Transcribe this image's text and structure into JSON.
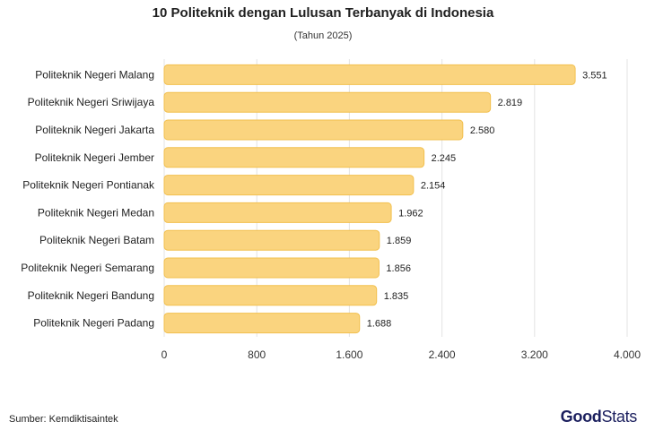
{
  "header": {
    "title": "10 Politeknik dengan Lulusan Terbanyak di Indonesia",
    "subtitle": "(Tahun 2025)"
  },
  "footer": {
    "source": "Sumber: Kemdiktisaintek",
    "brand_good": "Good",
    "brand_stats": "Stats"
  },
  "colors": {
    "bar_fill": "#fad47f",
    "bar_stroke": "#f2c04f",
    "grid": "#e3e3e3",
    "brand": "#1b1f5e"
  },
  "chart_data": {
    "type": "bar",
    "orientation": "horizontal",
    "title": "10 Politeknik dengan Lulusan Terbanyak di Indonesia",
    "subtitle": "(Tahun 2025)",
    "categories": [
      "Politeknik Negeri Malang",
      "Politeknik Negeri Sriwijaya",
      "Politeknik Negeri Jakarta",
      "Politeknik Negeri Jember",
      "Politeknik Negeri Pontianak",
      "Politeknik Negeri Medan",
      "Politeknik Negeri Batam",
      "Politeknik Negeri Semarang",
      "Politeknik Negeri Bandung",
      "Politeknik Negeri Padang"
    ],
    "values": [
      3551,
      2819,
      2580,
      2245,
      2154,
      1962,
      1859,
      1856,
      1835,
      1688
    ],
    "value_labels": [
      "3.551",
      "2.819",
      "2.580",
      "2.245",
      "2.154",
      "1.962",
      "1.859",
      "1.856",
      "1.835",
      "1.688"
    ],
    "xlim": [
      0,
      4000
    ],
    "x_ticks": [
      0,
      800,
      1600,
      2400,
      3200,
      4000
    ],
    "x_tick_labels": [
      "0",
      "800",
      "1.600",
      "2.400",
      "3.200",
      "4.000"
    ],
    "grid": true,
    "legend": "none"
  }
}
